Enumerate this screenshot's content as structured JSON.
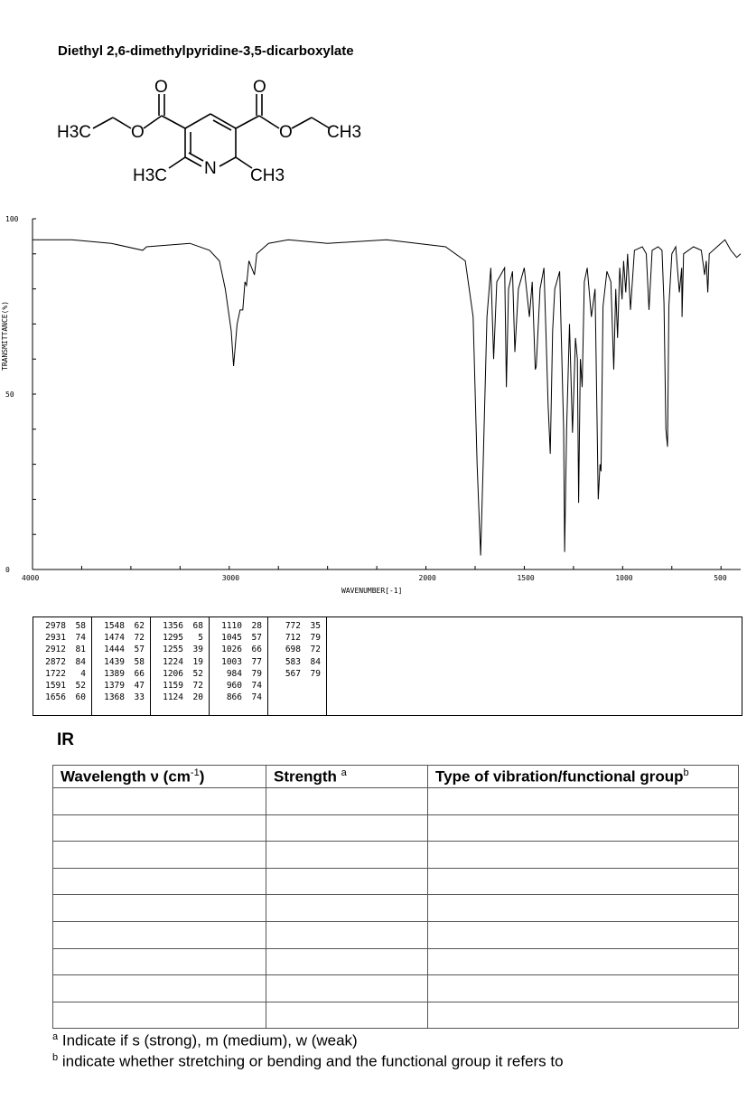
{
  "title": "Diethyl 2,6-dimethylpyridine-3,5-dicarboxylate",
  "structure_labels": {
    "o_carbonyl_left": "O",
    "o_carbonyl_right": "O",
    "o_ester_left": "O",
    "o_ester_right": "O",
    "h3c_left": "H3C",
    "ch3_right": "CH3",
    "h3c_ring": "H3C",
    "n_ring": "N",
    "ch3_ring": "CH3"
  },
  "chart_data": {
    "type": "line",
    "ylabel": "TRANSMITTANCE(%)",
    "xlabel": "WAVENUMBER[-1]",
    "ylim": [
      0,
      100
    ],
    "xlim": [
      4000,
      400
    ],
    "y_ticks": [
      "100",
      "50",
      "0"
    ],
    "x_ticks": [
      "4000",
      "3000",
      "2000",
      "1500",
      "1000",
      "500"
    ],
    "grid": false,
    "series": [
      {
        "points": [
          [
            4000,
            94
          ],
          [
            3800,
            94
          ],
          [
            3600,
            93
          ],
          [
            3440,
            91
          ],
          [
            3420,
            92
          ],
          [
            3200,
            93
          ],
          [
            3100,
            91
          ],
          [
            3050,
            88
          ],
          [
            3020,
            80
          ],
          [
            2990,
            68
          ],
          [
            2978,
            58
          ],
          [
            2960,
            70
          ],
          [
            2945,
            74
          ],
          [
            2931,
            74
          ],
          [
            2920,
            82
          ],
          [
            2912,
            81
          ],
          [
            2900,
            88
          ],
          [
            2872,
            84
          ],
          [
            2860,
            90
          ],
          [
            2800,
            93
          ],
          [
            2700,
            94
          ],
          [
            2500,
            93
          ],
          [
            2200,
            94
          ],
          [
            1900,
            92
          ],
          [
            1800,
            88
          ],
          [
            1760,
            72
          ],
          [
            1740,
            30
          ],
          [
            1722,
            4
          ],
          [
            1710,
            28
          ],
          [
            1690,
            72
          ],
          [
            1670,
            86
          ],
          [
            1656,
            60
          ],
          [
            1640,
            82
          ],
          [
            1600,
            86
          ],
          [
            1591,
            52
          ],
          [
            1580,
            80
          ],
          [
            1560,
            85
          ],
          [
            1548,
            62
          ],
          [
            1530,
            80
          ],
          [
            1500,
            86
          ],
          [
            1474,
            72
          ],
          [
            1460,
            82
          ],
          [
            1444,
            57
          ],
          [
            1439,
            58
          ],
          [
            1420,
            80
          ],
          [
            1400,
            86
          ],
          [
            1389,
            66
          ],
          [
            1379,
            47
          ],
          [
            1368,
            33
          ],
          [
            1356,
            68
          ],
          [
            1345,
            80
          ],
          [
            1320,
            85
          ],
          [
            1300,
            40
          ],
          [
            1295,
            5
          ],
          [
            1285,
            40
          ],
          [
            1270,
            70
          ],
          [
            1255,
            39
          ],
          [
            1240,
            66
          ],
          [
            1230,
            60
          ],
          [
            1224,
            19
          ],
          [
            1215,
            60
          ],
          [
            1206,
            52
          ],
          [
            1195,
            82
          ],
          [
            1180,
            86
          ],
          [
            1159,
            72
          ],
          [
            1140,
            80
          ],
          [
            1124,
            20
          ],
          [
            1115,
            30
          ],
          [
            1110,
            28
          ],
          [
            1100,
            75
          ],
          [
            1080,
            85
          ],
          [
            1060,
            82
          ],
          [
            1045,
            57
          ],
          [
            1035,
            80
          ],
          [
            1026,
            66
          ],
          [
            1015,
            86
          ],
          [
            1003,
            77
          ],
          [
            995,
            88
          ],
          [
            984,
            79
          ],
          [
            975,
            90
          ],
          [
            960,
            74
          ],
          [
            940,
            91
          ],
          [
            900,
            92
          ],
          [
            880,
            90
          ],
          [
            866,
            74
          ],
          [
            850,
            91
          ],
          [
            820,
            92
          ],
          [
            800,
            91
          ],
          [
            790,
            76
          ],
          [
            780,
            40
          ],
          [
            772,
            35
          ],
          [
            765,
            75
          ],
          [
            750,
            90
          ],
          [
            730,
            92
          ],
          [
            712,
            79
          ],
          [
            700,
            86
          ],
          [
            698,
            72
          ],
          [
            690,
            90
          ],
          [
            640,
            92
          ],
          [
            600,
            91
          ],
          [
            583,
            84
          ],
          [
            575,
            88
          ],
          [
            567,
            79
          ],
          [
            560,
            90
          ],
          [
            520,
            92
          ],
          [
            480,
            94
          ],
          [
            450,
            91
          ],
          [
            420,
            89
          ],
          [
            400,
            90
          ]
        ]
      }
    ]
  },
  "peak_table": [
    [
      [
        "2978",
        "58"
      ],
      [
        "2931",
        "74"
      ],
      [
        "2912",
        "81"
      ],
      [
        "2872",
        "84"
      ],
      [
        "1722",
        "4"
      ],
      [
        "1591",
        "52"
      ],
      [
        "1656",
        "60"
      ]
    ],
    [
      [
        "1548",
        "62"
      ],
      [
        "1474",
        "72"
      ],
      [
        "1444",
        "57"
      ],
      [
        "1439",
        "58"
      ],
      [
        "1389",
        "66"
      ],
      [
        "1379",
        "47"
      ],
      [
        "1368",
        "33"
      ]
    ],
    [
      [
        "1356",
        "68"
      ],
      [
        "1295",
        "5"
      ],
      [
        "1255",
        "39"
      ],
      [
        "1224",
        "19"
      ],
      [
        "1206",
        "52"
      ],
      [
        "1159",
        "72"
      ],
      [
        "1124",
        "20"
      ]
    ],
    [
      [
        "1110",
        "28"
      ],
      [
        "1045",
        "57"
      ],
      [
        "1026",
        "66"
      ],
      [
        "1003",
        "77"
      ],
      [
        "984",
        "79"
      ],
      [
        "960",
        "74"
      ],
      [
        "866",
        "74"
      ]
    ],
    [
      [
        "772",
        "35"
      ],
      [
        "712",
        "79"
      ],
      [
        "698",
        "72"
      ],
      [
        "583",
        "84"
      ],
      [
        "567",
        "79"
      ]
    ]
  ],
  "ir_heading": "IR",
  "table": {
    "col1": "Wavelength ν (cm",
    "col1_sup": "-1",
    "col1_end": ")",
    "col2": "Strength ",
    "col2_sup": "a",
    "col3": "Type of vibration/functional group",
    "col3_sup": "b",
    "empty_rows": 9
  },
  "footnote_a_mark": "a",
  "footnote_a": " Indicate if s (strong), m (medium), w (weak)",
  "footnote_b_mark": "b",
  "footnote_b": " indicate whether stretching or bending and the functional group it refers to"
}
